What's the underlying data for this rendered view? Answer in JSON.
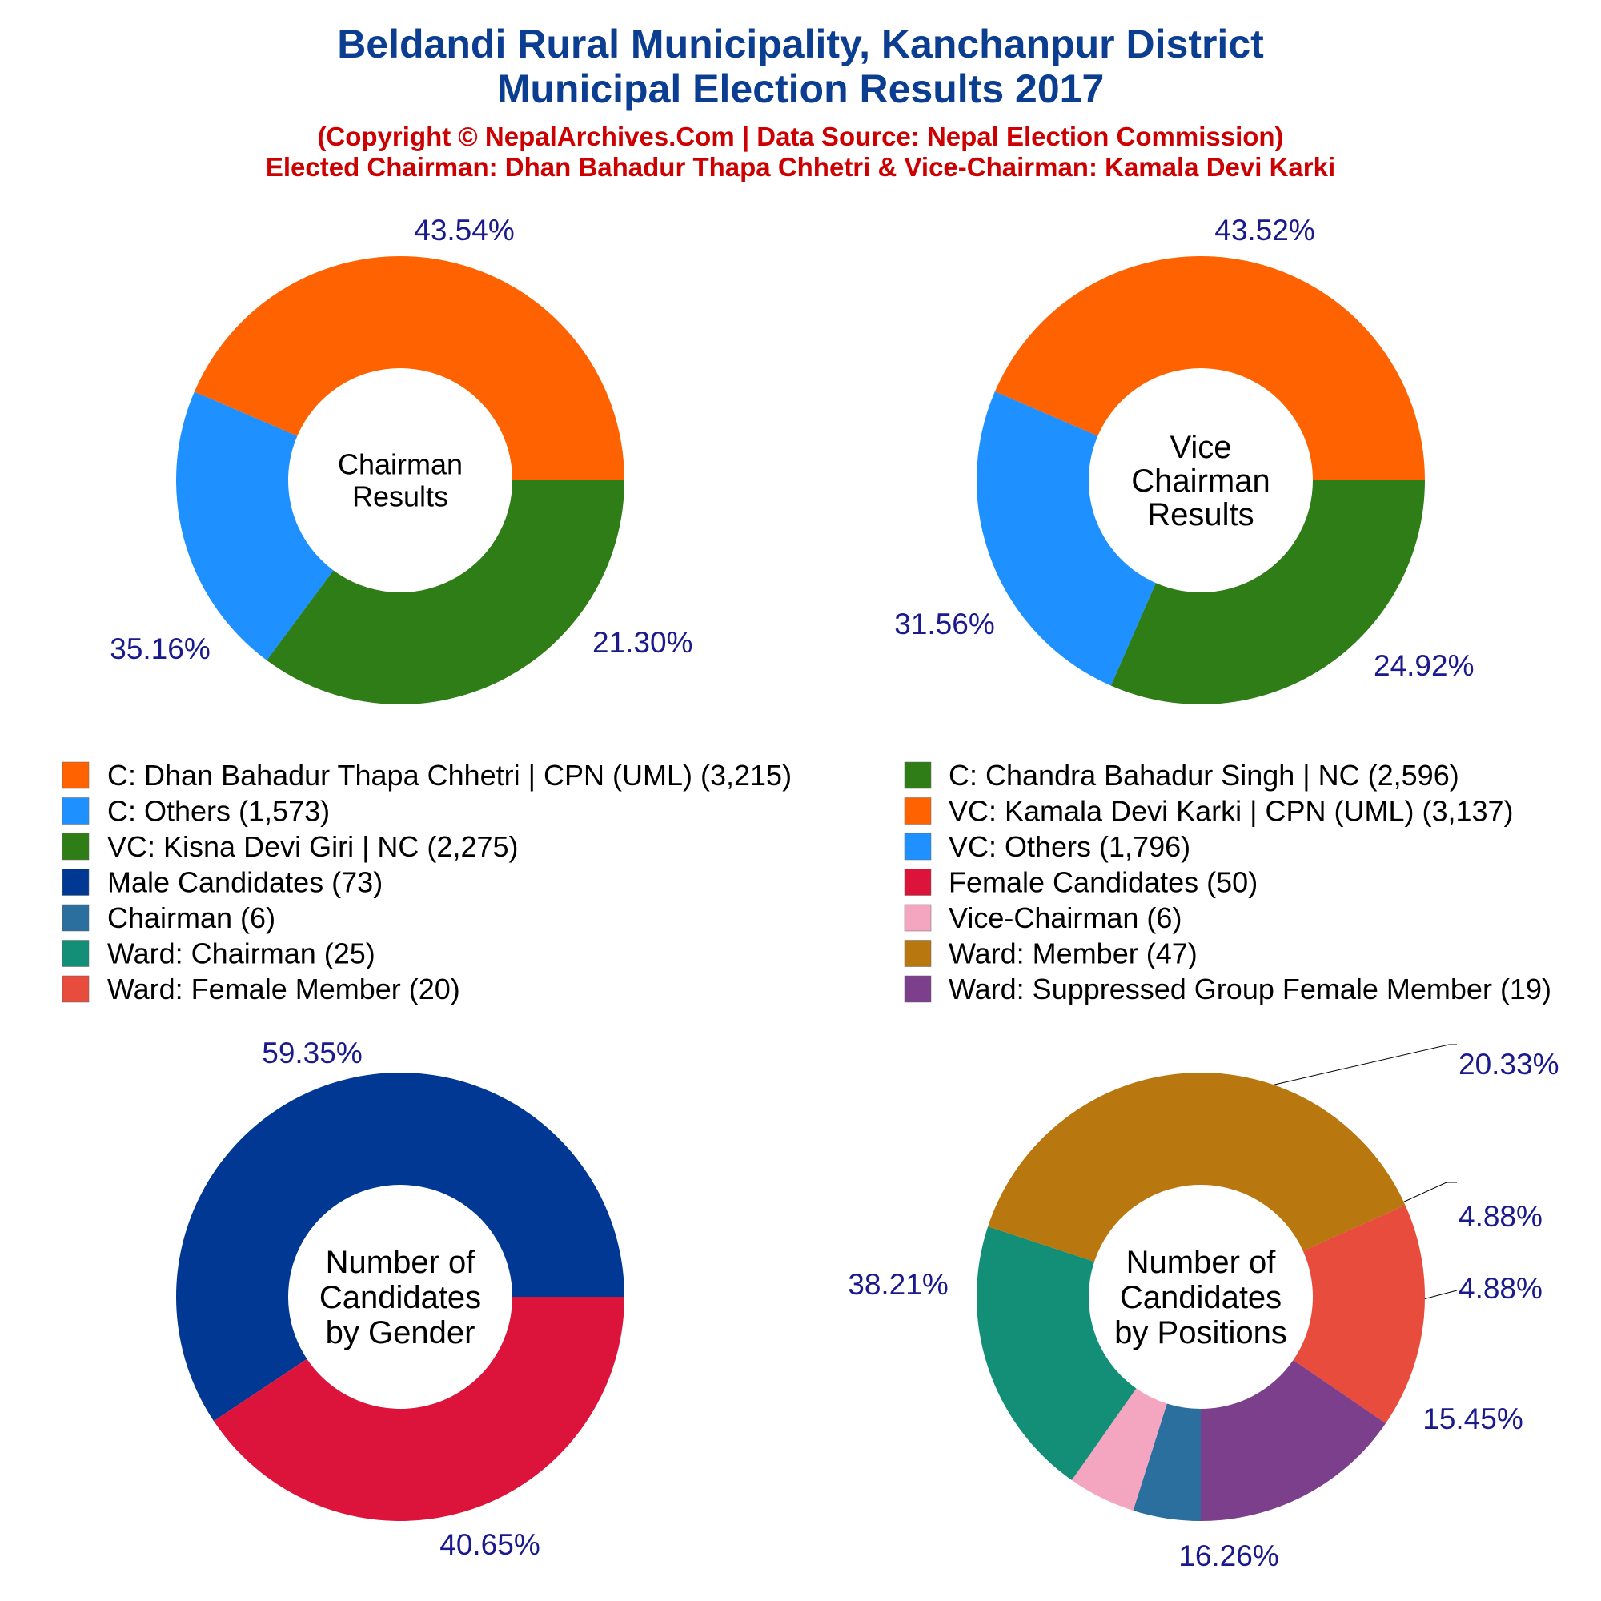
{
  "header": {
    "title_line1": "Beldandi Rural Municipality, Kanchanpur District",
    "title_line2": "Municipal Election Results 2017",
    "sub_line1": "(Copyright © NepalArchives.Com | Data Source: Nepal Election Commission)",
    "sub_line2": "Elected Chairman: Dhan Bahadur Thapa Chhetri & Vice-Chairman: Kamala Devi Karki"
  },
  "legend": {
    "left": [
      {
        "label": "C: Dhan Bahadur Thapa Chhetri | CPN (UML) (3,215)",
        "color": "#ff6200"
      },
      {
        "label": "C: Others (1,573)",
        "color": "#1e90ff"
      },
      {
        "label": "VC: Kisna Devi Giri | NC (2,275)",
        "color": "#2e7d16"
      },
      {
        "label": "Male Candidates (73)",
        "color": "#003893"
      },
      {
        "label": "Chairman (6)",
        "color": "#2a6f9e"
      },
      {
        "label": "Ward: Chairman (25)",
        "color": "#148f77"
      },
      {
        "label": "Ward: Female Member (20)",
        "color": "#e74c3c"
      }
    ],
    "right": [
      {
        "label": "C: Chandra Bahadur Singh | NC (2,596)",
        "color": "#2e7d16"
      },
      {
        "label": "VC: Kamala Devi Karki | CPN (UML) (3,137)",
        "color": "#ff6200"
      },
      {
        "label": "VC: Others (1,796)",
        "color": "#1e90ff"
      },
      {
        "label": "Female Candidates (50)",
        "color": "#dc143c"
      },
      {
        "label": "Vice-Chairman (6)",
        "color": "#f4a6c0"
      },
      {
        "label": "Ward: Member (47)",
        "color": "#b8770f"
      },
      {
        "label": "Ward: Suppressed Group Female Member (19)",
        "color": "#7b3f8c"
      }
    ]
  },
  "chart_data": [
    {
      "type": "pie",
      "center_label": [
        "Chairman",
        "Results"
      ],
      "slices": [
        {
          "name": "C: Dhan Bahadur Thapa Chhetri | CPN (UML)",
          "value": 3215,
          "percent": "43.54%",
          "color": "#ff6200"
        },
        {
          "name": "C: Others",
          "value": 1573,
          "percent": "21.30%",
          "color": "#1e90ff"
        },
        {
          "name": "C: Chandra Bahadur Singh | NC",
          "value": 2596,
          "percent": "35.16%",
          "color": "#2e7d16"
        }
      ]
    },
    {
      "type": "pie",
      "center_label": [
        "Vice",
        "Chairman",
        "Results"
      ],
      "slices": [
        {
          "name": "VC: Kamala Devi Karki | CPN (UML)",
          "value": 3137,
          "percent": "43.52%",
          "color": "#ff6200"
        },
        {
          "name": "VC: Others",
          "value": 1796,
          "percent": "24.92%",
          "color": "#1e90ff"
        },
        {
          "name": "VC: Kisna Devi Giri | NC",
          "value": 2275,
          "percent": "31.56%",
          "color": "#2e7d16"
        }
      ]
    },
    {
      "type": "pie",
      "center_label": [
        "Number of",
        "Candidates",
        "by Gender"
      ],
      "slices": [
        {
          "name": "Male Candidates",
          "value": 73,
          "percent": "59.35%",
          "color": "#003893"
        },
        {
          "name": "Female Candidates",
          "value": 50,
          "percent": "40.65%",
          "color": "#dc143c"
        }
      ]
    },
    {
      "type": "pie",
      "center_label": [
        "Number of",
        "Candidates",
        "by Positions"
      ],
      "slices": [
        {
          "name": "Chairman",
          "value": 6,
          "percent": "4.88%",
          "color": "#2a6f9e"
        },
        {
          "name": "Vice-Chairman",
          "value": 6,
          "percent": "4.88%",
          "color": "#f4a6c0"
        },
        {
          "name": "Ward: Chairman",
          "value": 25,
          "percent": "20.33%",
          "color": "#148f77"
        },
        {
          "name": "Ward: Member",
          "value": 47,
          "percent": "38.21%",
          "color": "#b8770f"
        },
        {
          "name": "Ward: Female Member",
          "value": 20,
          "percent": "16.26%",
          "color": "#e74c3c"
        },
        {
          "name": "Ward: Suppressed Group Female Member",
          "value": 19,
          "percent": "15.45%",
          "color": "#7b3f8c"
        }
      ]
    }
  ]
}
